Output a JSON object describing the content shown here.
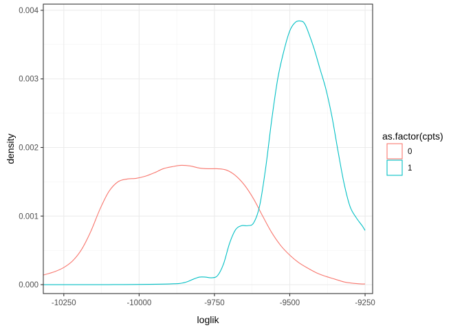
{
  "chart_data": {
    "type": "line",
    "title": "",
    "xlabel": "loglik",
    "ylabel": "density",
    "xlim": [
      -10318,
      -9225
    ],
    "ylim": [
      -0.00013,
      0.00409
    ],
    "x_ticks": [
      -10250,
      -10000,
      -9750,
      -9500,
      -9250
    ],
    "x_tick_labels": [
      "-10250",
      "-10000",
      "-9750",
      "-9500",
      "-9250"
    ],
    "y_ticks": [
      0.0,
      0.001,
      0.002,
      0.003,
      0.004
    ],
    "y_tick_labels": [
      "0.000",
      "0.001",
      "0.002",
      "0.003",
      "0.004"
    ],
    "x_minor_ticks": [
      -10125,
      -9875,
      -9625,
      -9375
    ],
    "y_minor_ticks": [
      0.0005,
      0.0015,
      0.0025,
      0.0035
    ],
    "grid": true,
    "legend": {
      "title": "as.factor(cpts)",
      "position": "right"
    },
    "series": [
      {
        "name": "0",
        "color": "#F8766D",
        "x": [
          -10318,
          -10280,
          -10250,
          -10220,
          -10190,
          -10160,
          -10130,
          -10100,
          -10070,
          -10040,
          -10010,
          -9980,
          -9950,
          -9920,
          -9890,
          -9860,
          -9830,
          -9800,
          -9770,
          -9740,
          -9710,
          -9680,
          -9650,
          -9620,
          -9590,
          -9560,
          -9530,
          -9500,
          -9470,
          -9440,
          -9410,
          -9380,
          -9350,
          -9320,
          -9290,
          -9260,
          -9250
        ],
        "values": [
          0.00014,
          0.00019,
          0.00025,
          0.00035,
          0.00052,
          0.00078,
          0.0011,
          0.00136,
          0.0015,
          0.00154,
          0.00155,
          0.00158,
          0.00163,
          0.00169,
          0.00172,
          0.00174,
          0.00173,
          0.0017,
          0.00169,
          0.00169,
          0.00167,
          0.00159,
          0.00145,
          0.00125,
          0.001,
          0.00076,
          0.00057,
          0.00043,
          0.00032,
          0.00024,
          0.00017,
          0.00012,
          8e-05,
          4e-05,
          2e-05,
          1e-05,
          1e-05
        ]
      },
      {
        "name": "1",
        "color": "#00BFC4",
        "x": [
          -10318,
          -10200,
          -10100,
          -9900,
          -9850,
          -9820,
          -9800,
          -9780,
          -9760,
          -9740,
          -9720,
          -9700,
          -9680,
          -9660,
          -9640,
          -9620,
          -9600,
          -9580,
          -9560,
          -9540,
          -9520,
          -9500,
          -9480,
          -9460,
          -9450,
          -9440,
          -9420,
          -9400,
          -9380,
          -9360,
          -9340,
          -9320,
          -9300,
          -9280,
          -9260,
          -9250
        ],
        "values": [
          0.0,
          0.0,
          0.0,
          1e-05,
          3e-05,
          8e-05,
          0.00011,
          0.00011,
          0.0001,
          0.00013,
          0.0003,
          0.0006,
          0.0008,
          0.00086,
          0.00086,
          0.0009,
          0.00115,
          0.0017,
          0.0024,
          0.003,
          0.0034,
          0.0037,
          0.00383,
          0.00384,
          0.0038,
          0.0037,
          0.00345,
          0.00315,
          0.00285,
          0.00245,
          0.00195,
          0.00148,
          0.00114,
          0.00098,
          0.00086,
          0.00079
        ]
      }
    ]
  }
}
